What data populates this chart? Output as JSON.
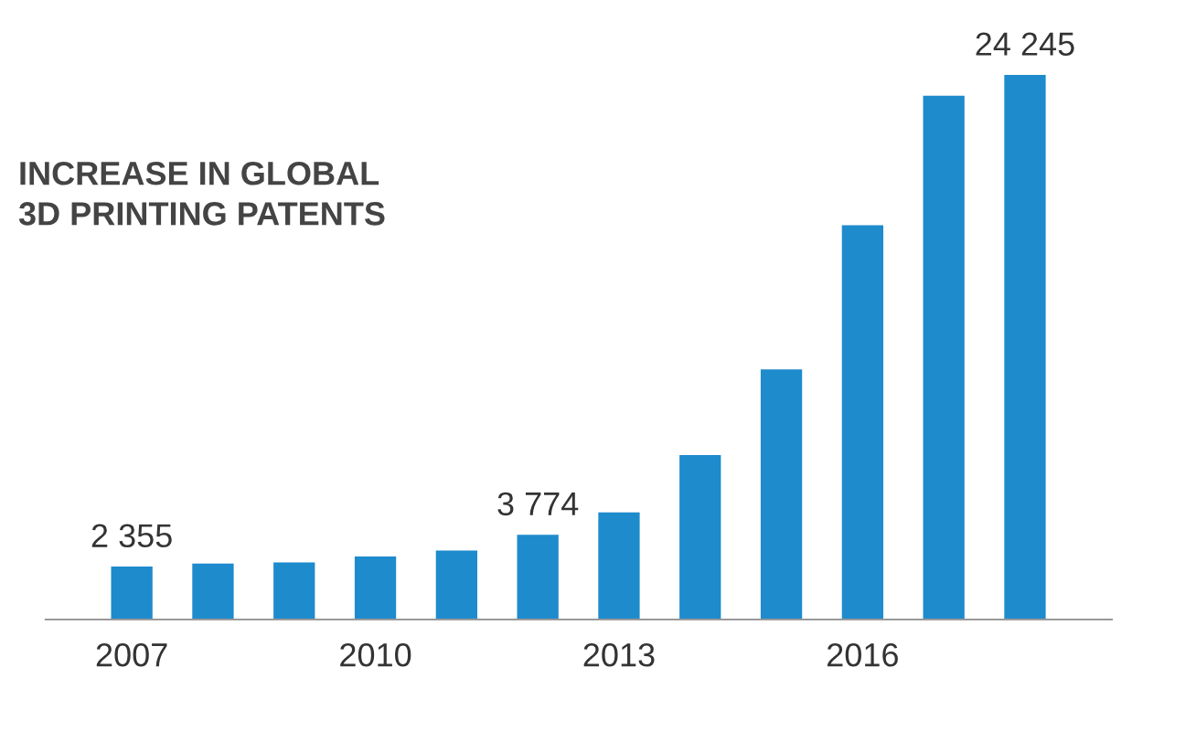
{
  "chart_data": {
    "type": "bar",
    "title": "INCREASE IN GLOBAL\n3D PRINTING PATENTS",
    "categories": [
      "2007",
      null,
      null,
      "2010",
      null,
      null,
      "2013",
      null,
      null,
      "2016",
      null,
      null
    ],
    "values": [
      2355,
      2490,
      2540,
      2810,
      3070,
      3774,
      4765,
      7323,
      11134,
      17555,
      23315,
      24245
    ],
    "value_labels": [
      "2 355",
      null,
      null,
      null,
      null,
      "3 774",
      null,
      null,
      null,
      null,
      null,
      "24 245"
    ],
    "color": "#1e8bcd",
    "grid": false,
    "legend": false
  }
}
